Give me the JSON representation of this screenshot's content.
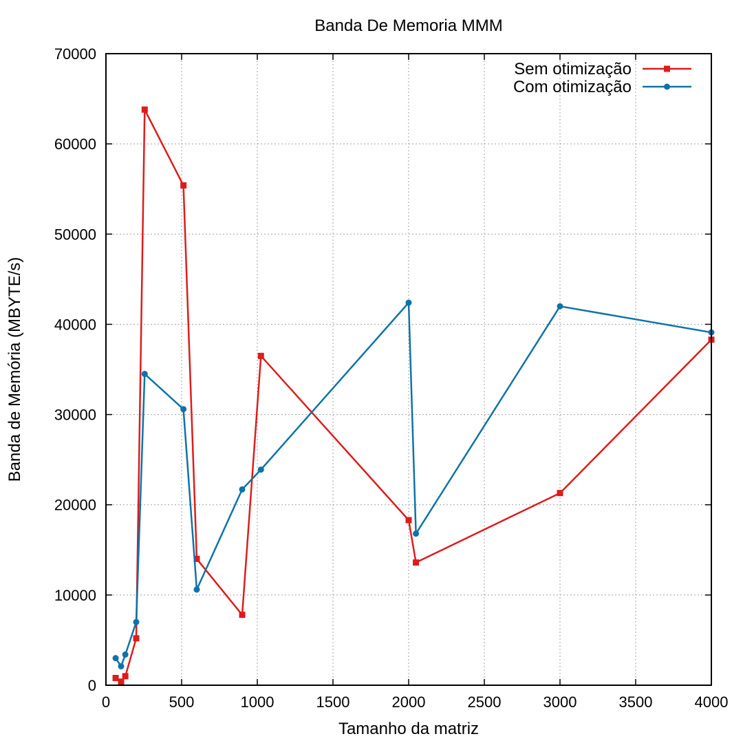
{
  "chart_data": {
    "type": "line",
    "title": "Banda De Memoria MMM",
    "xlabel": "Tamanho da matriz",
    "ylabel": "Banda de Memória (MBYTE/s)",
    "xlim": [
      0,
      4000
    ],
    "ylim": [
      0,
      70000
    ],
    "xticks": [
      0,
      500,
      1000,
      1500,
      2000,
      2500,
      3000,
      3500,
      4000
    ],
    "yticks": [
      0,
      10000,
      20000,
      30000,
      40000,
      50000,
      60000,
      70000
    ],
    "grid": true,
    "legend_position": "top-right",
    "series": [
      {
        "name": "Sem otimização",
        "color": "#dd1c1c",
        "marker": "square",
        "points": [
          [
            64,
            800
          ],
          [
            100,
            400
          ],
          [
            128,
            1000
          ],
          [
            200,
            5200
          ],
          [
            256,
            63800
          ],
          [
            512,
            55400
          ],
          [
            600,
            14000
          ],
          [
            900,
            7800
          ],
          [
            1024,
            36500
          ],
          [
            2000,
            18300
          ],
          [
            2048,
            13600
          ],
          [
            3000,
            21300
          ],
          [
            4000,
            38300
          ]
        ]
      },
      {
        "name": "Com otimização",
        "color": "#0f72a8",
        "marker": "circle",
        "points": [
          [
            64,
            3000
          ],
          [
            100,
            2100
          ],
          [
            128,
            3400
          ],
          [
            200,
            7000
          ],
          [
            256,
            34500
          ],
          [
            512,
            30600
          ],
          [
            600,
            10600
          ],
          [
            900,
            21700
          ],
          [
            1024,
            23900
          ],
          [
            2000,
            42400
          ],
          [
            2048,
            16800
          ],
          [
            3000,
            42000
          ],
          [
            4000,
            39100
          ]
        ]
      }
    ]
  }
}
